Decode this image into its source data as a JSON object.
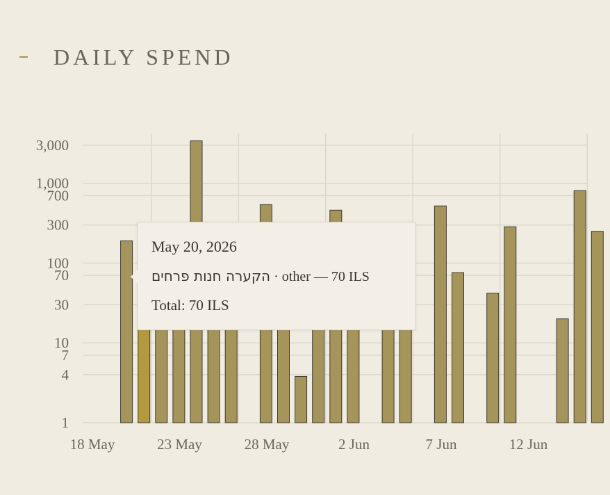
{
  "header": {
    "title": "DAILY SPEND"
  },
  "chart_data": {
    "type": "bar",
    "y_scale": "log",
    "ylim": [
      1,
      4000
    ],
    "y_ticks": [
      {
        "value": 1,
        "label": "1"
      },
      {
        "value": 4,
        "label": "4"
      },
      {
        "value": 7,
        "label": "7"
      },
      {
        "value": 10,
        "label": "10"
      },
      {
        "value": 30,
        "label": "30"
      },
      {
        "value": 70,
        "label": "70"
      },
      {
        "value": 100,
        "label": "100"
      },
      {
        "value": 300,
        "label": "300"
      },
      {
        "value": 700,
        "label": "700"
      },
      {
        "value": 1000,
        "label": "1,000"
      },
      {
        "value": 3000,
        "label": "3,000"
      }
    ],
    "x_ticks": [
      {
        "date": "2026-05-18",
        "label": "18 May"
      },
      {
        "date": "2026-05-23",
        "label": "23 May"
      },
      {
        "date": "2026-05-28",
        "label": "28 May"
      },
      {
        "date": "2026-06-02",
        "label": "2 Jun"
      },
      {
        "date": "2026-06-07",
        "label": "7 Jun"
      },
      {
        "date": "2026-06-12",
        "label": "12 Jun"
      }
    ],
    "grid": true,
    "currency": "ILS",
    "series": [
      {
        "points": [
          {
            "date": "2026-05-18",
            "value": null
          },
          {
            "date": "2026-05-19",
            "value": 190
          },
          {
            "date": "2026-05-20",
            "value": 70
          },
          {
            "date": "2026-05-21",
            "value": 25
          },
          {
            "date": "2026-05-22",
            "value": 25
          },
          {
            "date": "2026-05-23",
            "value": 3400
          },
          {
            "date": "2026-05-24",
            "value": 25
          },
          {
            "date": "2026-05-25",
            "value": 25
          },
          {
            "date": "2026-05-26",
            "value": null
          },
          {
            "date": "2026-05-27",
            "value": 540
          },
          {
            "date": "2026-05-28",
            "value": 25
          },
          {
            "date": "2026-05-29",
            "value": 3.8
          },
          {
            "date": "2026-05-30",
            "value": 25
          },
          {
            "date": "2026-05-31",
            "value": 460
          },
          {
            "date": "2026-06-01",
            "value": 25
          },
          {
            "date": "2026-06-02",
            "value": null
          },
          {
            "date": "2026-06-03",
            "value": 25
          },
          {
            "date": "2026-06-04",
            "value": 25
          },
          {
            "date": "2026-06-05",
            "value": null
          },
          {
            "date": "2026-06-06",
            "value": 520
          },
          {
            "date": "2026-06-07",
            "value": 76
          },
          {
            "date": "2026-06-08",
            "value": null
          },
          {
            "date": "2026-06-09",
            "value": 42
          },
          {
            "date": "2026-06-10",
            "value": 285
          },
          {
            "date": "2026-06-11",
            "value": null
          },
          {
            "date": "2026-06-12",
            "value": null
          },
          {
            "date": "2026-06-13",
            "value": 20
          },
          {
            "date": "2026-06-14",
            "value": 810
          },
          {
            "date": "2026-06-15",
            "value": 250
          }
        ]
      }
    ],
    "active_date": "2026-05-20",
    "tooltip": {
      "date": "May 20, 2026",
      "merchant": "הקערה חנות פרחים",
      "detail": " · other — 70 ILS",
      "total": "Total: 70 ILS"
    }
  }
}
